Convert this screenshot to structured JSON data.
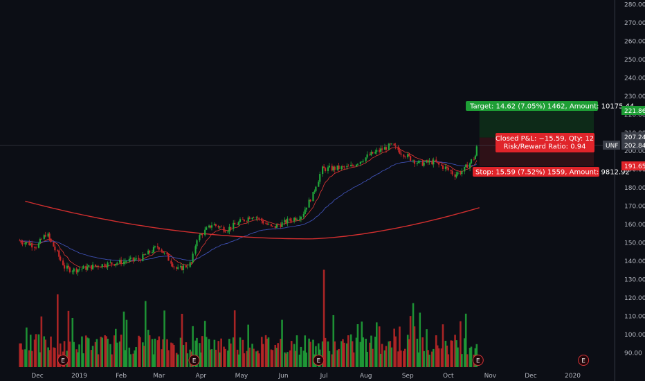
{
  "chart_data": {
    "type": "candlestick",
    "symbol": "UNF",
    "x_ticks": [
      "Dec",
      "2019",
      "Feb",
      "Mar",
      "Apr",
      "May",
      "Jun",
      "Jul",
      "Aug",
      "Sep",
      "Oct",
      "Nov",
      "Dec",
      "2020"
    ],
    "y_ticks": [
      "280.00",
      "270.00",
      "260.00",
      "250.00",
      "240.00",
      "230.00",
      "220.00",
      "210.00",
      "200.00",
      "190.00",
      "180.00",
      "170.00",
      "160.00",
      "150.00",
      "140.00",
      "130.00",
      "120.00",
      "110.00",
      "100.00",
      "90.00"
    ],
    "ylim": [
      85,
      282
    ],
    "price_labels": {
      "target": "221.86",
      "high": "207.24",
      "last": "202.84",
      "stop": "191.65"
    },
    "position": {
      "target_label": "Target: 14.62 (7.05%) 1462, Amount: 10175.44",
      "stop_label": "Stop: 15.59 (7.52%) 1559, Amount: 9812.92",
      "pnl_label": "Closed P&L: −15.59, Qty: 12",
      "ratio_label": "Risk/Reward Ratio: 0.94",
      "target_price": 221.86,
      "entry_price": 207.24,
      "stop_price": 191.65
    },
    "key_closes": [
      {
        "date": "2018-11-18",
        "close": 151
      },
      {
        "date": "2018-12-01",
        "close": 148
      },
      {
        "date": "2018-12-08",
        "close": 155
      },
      {
        "date": "2018-12-22",
        "close": 136
      },
      {
        "date": "2018-12-28",
        "close": 135
      },
      {
        "date": "2019-01-20",
        "close": 138
      },
      {
        "date": "2019-02-15",
        "close": 141
      },
      {
        "date": "2019-03-01",
        "close": 148
      },
      {
        "date": "2019-03-15",
        "close": 135
      },
      {
        "date": "2019-03-26",
        "close": 139
      },
      {
        "date": "2019-03-29",
        "close": 152
      },
      {
        "date": "2019-04-10",
        "close": 160
      },
      {
        "date": "2019-04-20",
        "close": 157
      },
      {
        "date": "2019-05-10",
        "close": 165
      },
      {
        "date": "2019-05-24",
        "close": 158
      },
      {
        "date": "2019-06-15",
        "close": 165
      },
      {
        "date": "2019-06-23",
        "close": 176
      },
      {
        "date": "2019-06-30",
        "close": 190
      },
      {
        "date": "2019-07-20",
        "close": 191
      },
      {
        "date": "2019-08-05",
        "close": 198
      },
      {
        "date": "2019-08-20",
        "close": 203
      },
      {
        "date": "2019-09-01",
        "close": 197
      },
      {
        "date": "2019-09-10",
        "close": 193
      },
      {
        "date": "2019-09-20",
        "close": 194
      },
      {
        "date": "2019-10-01",
        "close": 190
      },
      {
        "date": "2019-10-06",
        "close": 187
      },
      {
        "date": "2019-10-12",
        "close": 189
      },
      {
        "date": "2019-10-18",
        "close": 194
      },
      {
        "date": "2019-10-22",
        "close": 198
      },
      {
        "date": "2019-10-24",
        "close": 207
      }
    ],
    "earnings_markers": [
      {
        "date": "2018-12-20",
        "label": "E"
      },
      {
        "date": "2019-03-27",
        "label": "E"
      },
      {
        "date": "2019-06-27",
        "label": "E"
      },
      {
        "date": "2019-10-23",
        "label": "E"
      },
      {
        "date": "2020-01-09",
        "label": "E"
      }
    ],
    "colors": {
      "up": "#21a73a",
      "down": "#c62828",
      "background": "#0c0e15",
      "ma_long": "#d32f2f",
      "ma_mid": "#3f51b5",
      "ma_short": "#e53935",
      "target_zone": "#0d2a18",
      "stop_zone": "#2e1117",
      "target_label": "#1e9e35",
      "stop_label": "#e0242a"
    }
  }
}
